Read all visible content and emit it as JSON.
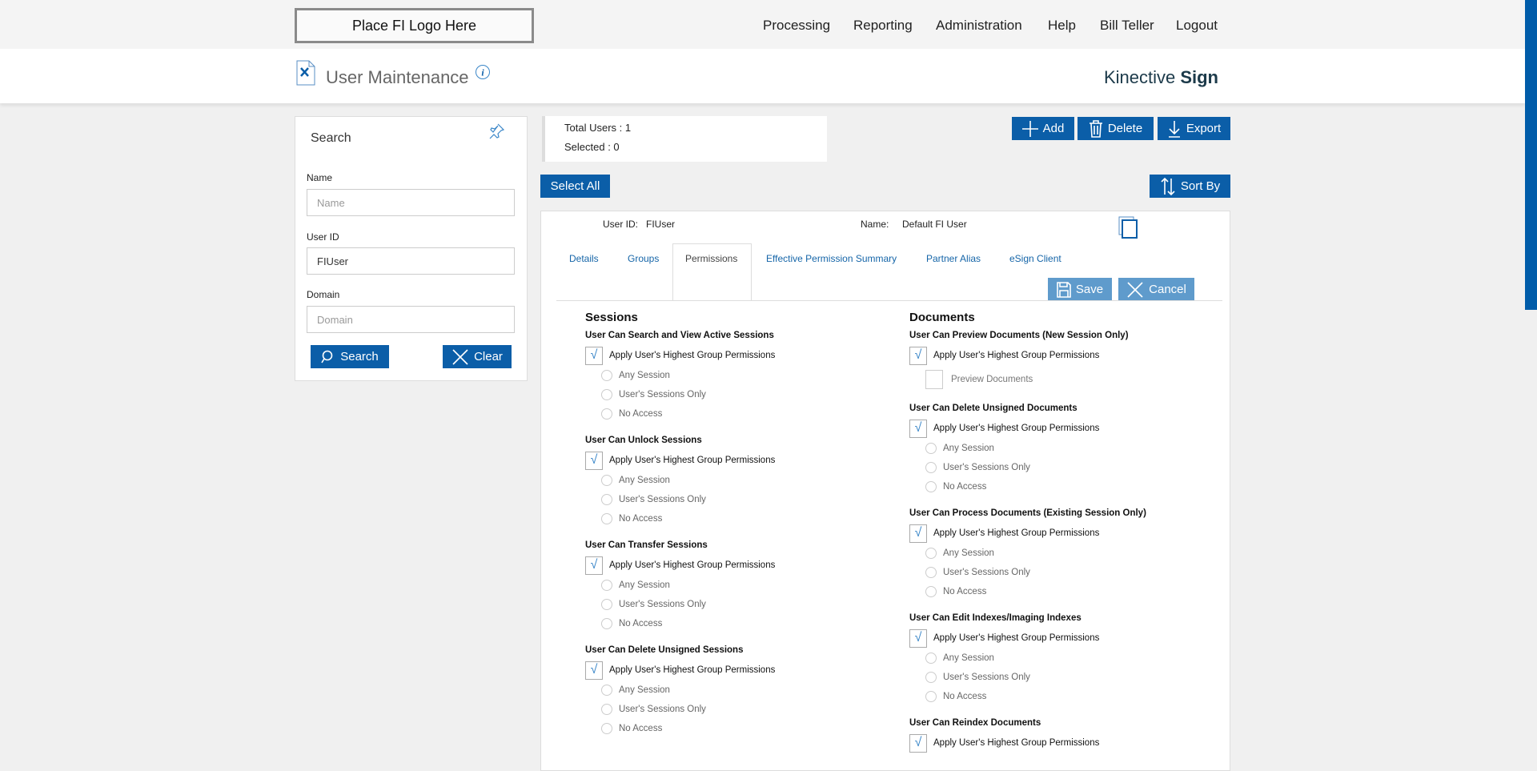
{
  "header": {
    "logo_text": "Place FI Logo Here",
    "nav": [
      "Processing",
      "Reporting",
      "Administration",
      "Help",
      "Bill Teller",
      "Logout"
    ]
  },
  "titlebar": {
    "title": "User Maintenance",
    "brand_light": "Kinective ",
    "brand_bold": "Sign"
  },
  "search": {
    "title": "Search",
    "name_label": "Name",
    "name_placeholder": "Name",
    "name_value": "",
    "userid_label": "User ID",
    "userid_value": "FIUser",
    "domain_label": "Domain",
    "domain_placeholder": "Domain",
    "search_button": "Search",
    "clear_button": "Clear"
  },
  "stats": {
    "total": "Total Users : 1",
    "selected": "Selected : 0"
  },
  "toolbar": {
    "add": "Add",
    "delete": "Delete",
    "export": "Export",
    "select_all": "Select All",
    "sort_by": "Sort By"
  },
  "user": {
    "userid_label": "User ID:",
    "userid": "FIUser",
    "name_label": "Name:",
    "name": "Default FI User"
  },
  "tabs": [
    "Details",
    "Groups",
    "Permissions",
    "Effective Permission Summary",
    "Partner Alias",
    "eSign Client"
  ],
  "active_tab": "Permissions",
  "actions": {
    "save": "Save",
    "cancel": "Cancel"
  },
  "permissions": {
    "sessions": {
      "title": "Sessions",
      "groups": [
        {
          "title": "User Can Search and View Active Sessions",
          "apply": "Apply User's Highest Group Permissions",
          "checked": true,
          "options": [
            "Any Session",
            "User's Sessions Only",
            "No Access"
          ]
        },
        {
          "title": "User Can Unlock Sessions",
          "apply": "Apply User's Highest Group Permissions",
          "checked": true,
          "options": [
            "Any Session",
            "User's Sessions Only",
            "No Access"
          ]
        },
        {
          "title": "User Can Transfer Sessions",
          "apply": "Apply User's Highest Group Permissions",
          "checked": true,
          "options": [
            "Any Session",
            "User's Sessions Only",
            "No Access"
          ]
        },
        {
          "title": "User Can Delete Unsigned Sessions",
          "apply": "Apply User's Highest Group Permissions",
          "checked": true,
          "options": [
            "Any Session",
            "User's Sessions Only",
            "No Access"
          ]
        }
      ]
    },
    "documents": {
      "title": "Documents",
      "groups": [
        {
          "title": "User Can Preview Documents (New Session Only)",
          "apply": "Apply User's Highest Group Permissions",
          "checked": true,
          "checkbox_option": "Preview Documents"
        },
        {
          "title": "User Can Delete Unsigned Documents",
          "apply": "Apply User's Highest Group Permissions",
          "checked": true,
          "options": [
            "Any Session",
            "User's Sessions Only",
            "No Access"
          ]
        },
        {
          "title": "User Can Process Documents (Existing Session Only)",
          "apply": "Apply User's Highest Group Permissions",
          "checked": true,
          "options": [
            "Any Session",
            "User's Sessions Only",
            "No Access"
          ]
        },
        {
          "title": "User Can Edit Indexes/Imaging Indexes",
          "apply": "Apply User's Highest Group Permissions",
          "checked": true,
          "options": [
            "Any Session",
            "User's Sessions Only",
            "No Access"
          ]
        },
        {
          "title": "User Can Reindex Documents",
          "apply": "Apply User's Highest Group Permissions",
          "checked": true,
          "options": []
        }
      ]
    }
  },
  "colors": {
    "primary": "#0b5ea8",
    "disabled_button": "#5f9bcc",
    "scrollbar": "#005ca9"
  }
}
